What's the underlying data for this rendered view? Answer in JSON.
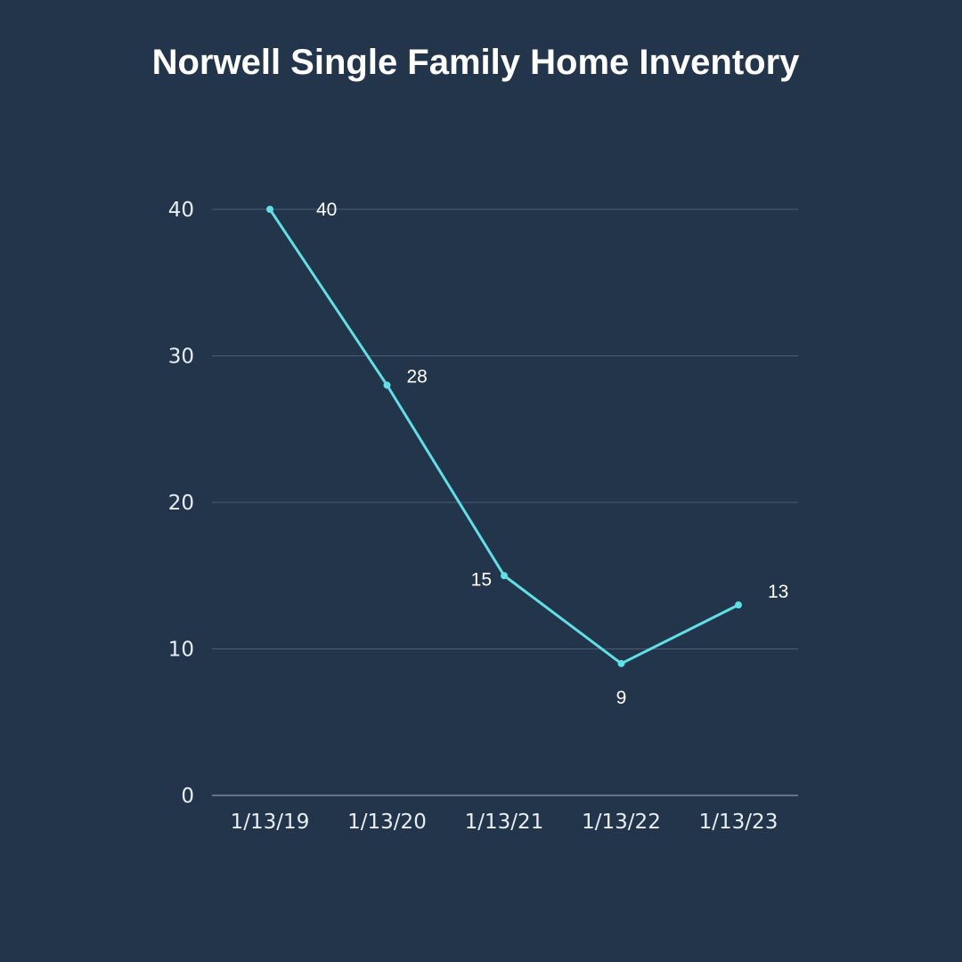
{
  "chart_data": {
    "type": "line",
    "title": "Norwell Single Family Home Inventory",
    "xlabel": "",
    "ylabel": "",
    "categories": [
      "1/13/19",
      "1/13/20",
      "1/13/21",
      "1/13/22",
      "1/13/23"
    ],
    "series": [
      {
        "values": [
          40,
          28,
          15,
          9,
          13
        ]
      }
    ],
    "data_labels": [
      "40",
      "28",
      "15",
      "9",
      "13"
    ],
    "ylim": [
      0,
      40
    ],
    "yticks": [
      0,
      10,
      20,
      30,
      40
    ],
    "ytick_labels": [
      "0",
      "10",
      "20",
      "30",
      "40"
    ],
    "grid": true,
    "legend": "none"
  },
  "colors": {
    "background": "#22354a",
    "line": "#5fe0e6",
    "grid": "#4a5d72",
    "text": "#ffffff"
  }
}
